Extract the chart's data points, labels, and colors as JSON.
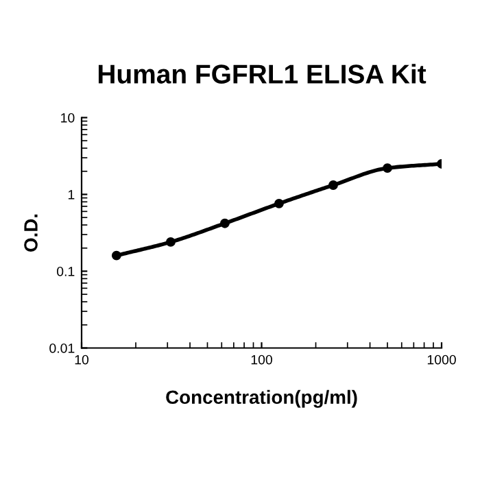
{
  "chart_data": {
    "type": "line",
    "title": "Human FGFRL1 ELISA Kit",
    "xlabel": "Concentration(pg/ml)",
    "ylabel": "O.D.",
    "x": [
      15.625,
      31.25,
      62.5,
      125,
      250,
      500,
      1000
    ],
    "series": [
      {
        "color": "#000000",
        "values": [
          0.16,
          0.24,
          0.42,
          0.76,
          1.32,
          2.2,
          2.5
        ]
      }
    ],
    "log": "xy",
    "xlim": [
      10,
      1000
    ],
    "ylim": [
      0.01,
      10
    ],
    "xticks": [
      10,
      100,
      1000
    ],
    "yticks": [
      0.01,
      0.1,
      1,
      10
    ],
    "marker": "circle",
    "line_style": "solid",
    "grid": false,
    "legend": false
  }
}
